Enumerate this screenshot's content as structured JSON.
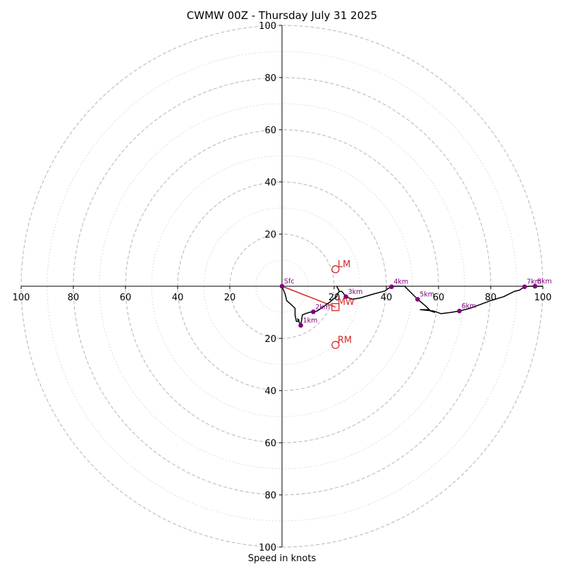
{
  "chart_data": {
    "type": "hodograph",
    "title": "CWMW 00Z - Thursday July 31 2025",
    "xlabel": "Speed in knots",
    "ylabel": "",
    "xlim": [
      -100,
      100
    ],
    "ylim": [
      -100,
      100
    ],
    "x_ticks": [
      "100",
      "80",
      "60",
      "40",
      "20",
      "20",
      "40",
      "60",
      "80",
      "100"
    ],
    "x_tick_values": [
      -100,
      -80,
      -60,
      -40,
      -20,
      20,
      40,
      60,
      80,
      100
    ],
    "y_ticks": [
      "100",
      "80",
      "60",
      "40",
      "20",
      "20",
      "40",
      "60",
      "80",
      "100"
    ],
    "y_tick_values": [
      100,
      80,
      60,
      40,
      20,
      -20,
      -40,
      -60,
      -80,
      -100
    ],
    "rings_dashed": [
      20,
      40,
      60,
      80,
      100
    ],
    "rings_dotted": [
      10,
      30,
      50,
      70,
      90
    ],
    "grid": true,
    "colors": {
      "profile": "#000000",
      "height_markers": "#800080",
      "storm_motion": "#d62728",
      "rings": "#bbbbbb"
    },
    "profile": [
      [
        0,
        0
      ],
      [
        1.2,
        -3
      ],
      [
        1.8,
        -5.5
      ],
      [
        3.5,
        -7
      ],
      [
        5,
        -8.5
      ],
      [
        5,
        -11
      ],
      [
        5.5,
        -13.5
      ],
      [
        6,
        -13.5
      ],
      [
        6.5,
        -13
      ],
      [
        6,
        -12.5
      ],
      [
        7.2,
        -15
      ],
      [
        7.8,
        -11
      ],
      [
        9,
        -10.5
      ],
      [
        10.5,
        -10
      ],
      [
        12,
        -9.8
      ],
      [
        13.5,
        -9.5
      ],
      [
        15,
        -8.5
      ],
      [
        17,
        -7
      ],
      [
        18.5,
        -6
      ],
      [
        19.5,
        -5
      ],
      [
        21,
        -4
      ],
      [
        21.2,
        -3
      ],
      [
        22,
        -2
      ],
      [
        21.5,
        -1
      ],
      [
        21,
        0
      ],
      [
        22,
        -2
      ],
      [
        23,
        -2
      ],
      [
        24.5,
        -4
      ],
      [
        27,
        -5
      ],
      [
        30,
        -4.5
      ],
      [
        35,
        -3
      ],
      [
        39.5,
        -1.8
      ],
      [
        40.5,
        -1
      ],
      [
        42,
        -0.2
      ],
      [
        43,
        0
      ],
      [
        47,
        0
      ],
      [
        50,
        -3
      ],
      [
        52,
        -5
      ],
      [
        55,
        -7.5
      ],
      [
        57,
        -9.5
      ],
      [
        58.5,
        -10
      ],
      [
        56,
        -9
      ],
      [
        53,
        -9
      ],
      [
        58,
        -9.5
      ],
      [
        61,
        -10.5
      ],
      [
        65,
        -10
      ],
      [
        68,
        -9.5
      ],
      [
        72,
        -8.5
      ],
      [
        76,
        -7
      ],
      [
        80,
        -5.5
      ],
      [
        85,
        -4
      ],
      [
        89,
        -2
      ],
      [
        91,
        -1.5
      ],
      [
        93,
        -0.2
      ],
      [
        95,
        0
      ],
      [
        100,
        0
      ]
    ],
    "height_markers": [
      {
        "label": "Sfc",
        "u": 0,
        "v": 0
      },
      {
        "label": "1km",
        "u": 7.2,
        "v": -15
      },
      {
        "label": "2km",
        "u": 12,
        "v": -9.8
      },
      {
        "label": "3km",
        "u": 24.5,
        "v": -4
      },
      {
        "label": "4km",
        "u": 42,
        "v": -0.2
      },
      {
        "label": "5km",
        "u": 52,
        "v": -5
      },
      {
        "label": "6km",
        "u": 68,
        "v": -9.5
      },
      {
        "label": "7km",
        "u": 93,
        "v": -0.2
      },
      {
        "label": "8km",
        "u": 97,
        "v": 0
      }
    ],
    "storm_motion": [
      {
        "label": "LM",
        "u": 20.5,
        "v": 6.5,
        "marker": "circle"
      },
      {
        "label": "MW",
        "u": 20.5,
        "v": -8,
        "marker": "square"
      },
      {
        "label": "RM",
        "u": 20.5,
        "v": -22.5,
        "marker": "circle"
      }
    ],
    "shear_vector": {
      "from": [
        0,
        0
      ],
      "to": [
        20.5,
        -8
      ]
    }
  }
}
